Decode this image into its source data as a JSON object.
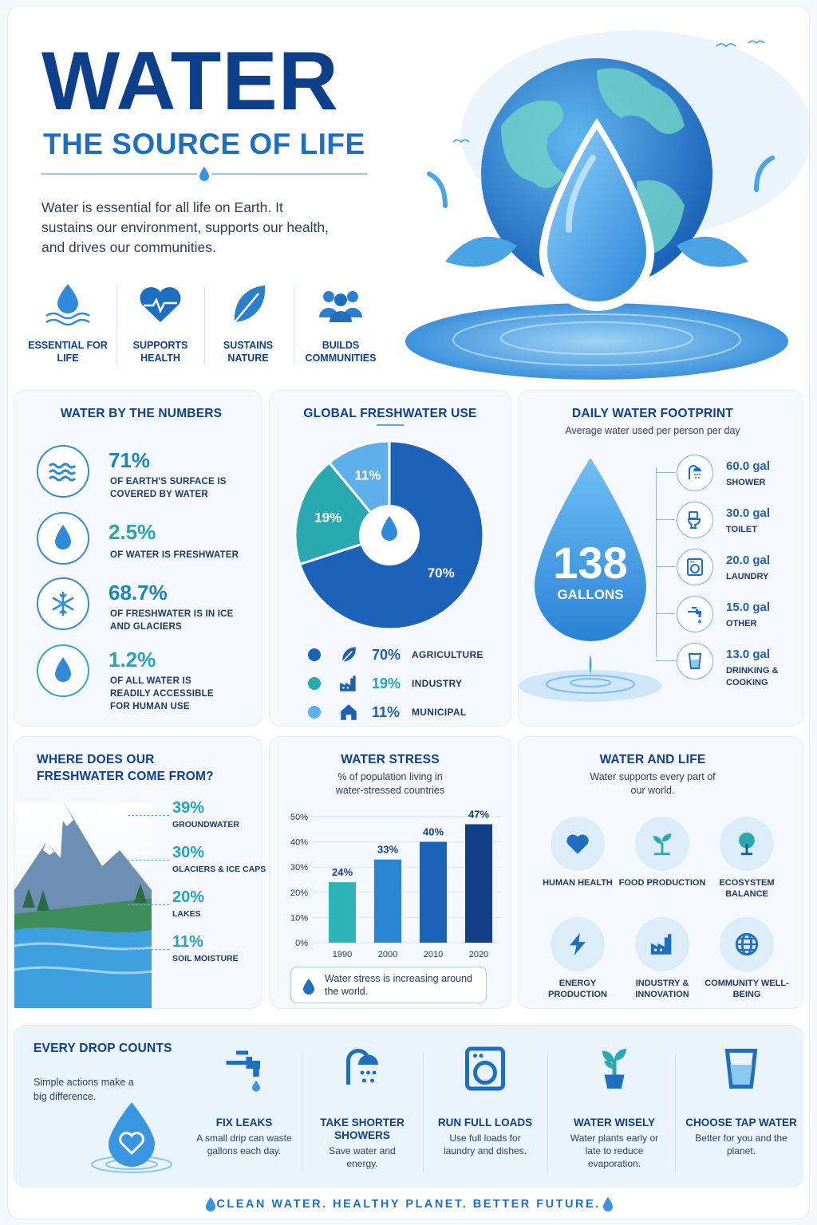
{
  "hero": {
    "title": "WATER",
    "subtitle": "THE SOURCE OF LIFE",
    "description": "Water is essential for all life on Earth. It sustains our environment, supports our health, and drives our communities.",
    "features": [
      {
        "label": "ESSENTIAL FOR LIFE",
        "icon": "water-drop-waves-icon"
      },
      {
        "label": "SUPPORTS HEALTH",
        "icon": "heartbeat-icon"
      },
      {
        "label": "SUSTAINS NATURE",
        "icon": "leaf-icon"
      },
      {
        "label": "BUILDS COMMUNITIES",
        "icon": "people-icon"
      }
    ]
  },
  "numbers": {
    "title": "WATER BY THE NUMBERS",
    "items": [
      {
        "value": "71%",
        "label": "OF EARTH'S SURFACE IS COVERED BY WATER",
        "icon": "waves-icon"
      },
      {
        "value": "2.5%",
        "label": "OF WATER IS FRESHWATER",
        "icon": "water-drop-icon"
      },
      {
        "value": "68.7%",
        "label": "OF FRESHWATER IS IN ICE AND GLACIERS",
        "icon": "snowflake-icon"
      },
      {
        "value": "1.2%",
        "label": "OF ALL WATER IS READILY ACCESSIBLE FOR HUMAN USE",
        "icon": "water-drop-icon"
      }
    ]
  },
  "freshwater_use": {
    "title": "GLOBAL FRESHWATER USE",
    "legend": [
      {
        "pct": "70%",
        "label": "AGRICULTURE",
        "color": "#1b62b8",
        "icon": "leaf-icon"
      },
      {
        "pct": "19%",
        "label": "INDUSTRY",
        "color": "#2aa9b0",
        "icon": "factory-icon"
      },
      {
        "pct": "11%",
        "label": "MUNICIPAL",
        "color": "#5fb0ea",
        "icon": "house-icon"
      }
    ]
  },
  "footprint": {
    "title": "DAILY WATER FOOTPRINT",
    "subtitle": "Average water used per person per day",
    "total_value": "138",
    "total_unit": "GALLONS",
    "items": [
      {
        "value": "60.0 gal",
        "label": "SHOWER",
        "icon": "shower-icon"
      },
      {
        "value": "30.0 gal",
        "label": "TOILET",
        "icon": "toilet-icon"
      },
      {
        "value": "20.0 gal",
        "label": "LAUNDRY",
        "icon": "washing-machine-icon"
      },
      {
        "value": "15.0 gal",
        "label": "OTHER",
        "icon": "faucet-icon"
      },
      {
        "value": "13.0 gal",
        "label": "DRINKING & COOKING",
        "icon": "glass-icon"
      }
    ]
  },
  "sources": {
    "title": "WHERE DOES OUR FRESHWATER COME FROM?",
    "items": [
      {
        "pct": "39%",
        "label": "GROUNDWATER"
      },
      {
        "pct": "30%",
        "label": "GLACIERS & ICE CAPS"
      },
      {
        "pct": "20%",
        "label": "LAKES"
      },
      {
        "pct": "11%",
        "label": "SOIL MOISTURE"
      }
    ]
  },
  "stress": {
    "title": "WATER STRESS",
    "subtitle": "% of population living in water-stressed countries",
    "note": "Water stress is increasing around the world."
  },
  "life": {
    "title": "WATER AND LIFE",
    "subtitle": "Water supports every part of our world.",
    "items": [
      {
        "label": "HUMAN HEALTH",
        "icon": "heart-icon"
      },
      {
        "label": "FOOD PRODUCTION",
        "icon": "sprout-icon"
      },
      {
        "label": "ECOSYSTEM BALANCE",
        "icon": "tree-icon"
      },
      {
        "label": "ENERGY PRODUCTION",
        "icon": "lightning-icon"
      },
      {
        "label": "INDUSTRY & INNOVATION",
        "icon": "factory-icon"
      },
      {
        "label": "COMMUNITY WELL-BEING",
        "icon": "globe-icon"
      }
    ]
  },
  "tips": {
    "title": "EVERY DROP COUNTS",
    "subtitle": "Simple actions make a big difference.",
    "items": [
      {
        "title": "FIX LEAKS",
        "desc": "A small drip can waste gallons each day.",
        "icon": "faucet-icon"
      },
      {
        "title": "TAKE SHORTER SHOWERS",
        "desc": "Save water and energy.",
        "icon": "shower-icon"
      },
      {
        "title": "RUN FULL LOADS",
        "desc": "Use full loads for laundry and dishes.",
        "icon": "washing-machine-icon"
      },
      {
        "title": "WATER WISELY",
        "desc": "Water plants early or late to reduce evaporation.",
        "icon": "potted-plant-icon"
      },
      {
        "title": "CHOOSE TAP WATER",
        "desc": "Better for you and the planet.",
        "icon": "glass-icon"
      }
    ]
  },
  "footer": {
    "tagline": "CLEAN WATER.  HEALTHY PLANET.  BETTER FUTURE."
  },
  "chart_data": [
    {
      "type": "pie",
      "title": "GLOBAL FRESHWATER USE",
      "categories": [
        "AGRICULTURE",
        "INDUSTRY",
        "MUNICIPAL"
      ],
      "values": [
        70,
        19,
        11
      ],
      "value_labels": [
        "70%",
        "19%",
        "11%"
      ],
      "colors": [
        "#1b62b8",
        "#2aa9b0",
        "#5fb0ea"
      ]
    },
    {
      "type": "bar",
      "title": "WATER STRESS",
      "categories": [
        "1990",
        "2000",
        "2010",
        "2020"
      ],
      "values": [
        24,
        33,
        40,
        47
      ],
      "value_labels": [
        "24%",
        "33%",
        "40%",
        "47%"
      ],
      "y_ticks": [
        "0%",
        "10%",
        "20%",
        "30%",
        "40%",
        "50%"
      ],
      "ylim": [
        0,
        50
      ],
      "colors": [
        "#2bb5b8",
        "#2a86d2",
        "#1b62b8",
        "#123f86"
      ]
    }
  ]
}
